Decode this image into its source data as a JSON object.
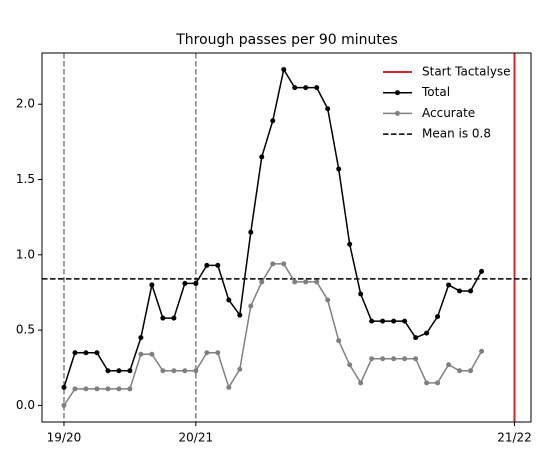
{
  "chart_data": {
    "type": "line",
    "title": "Through passes per 90 minutes",
    "x": [
      0,
      1,
      2,
      3,
      4,
      5,
      6,
      7,
      8,
      9,
      10,
      11,
      12,
      13,
      14,
      15,
      16,
      17,
      18,
      19,
      20,
      21,
      22,
      23,
      24,
      25,
      26,
      27,
      28,
      29,
      30,
      31,
      32,
      33,
      34,
      35,
      36,
      37,
      38
    ],
    "series": [
      {
        "name": "Total",
        "color": "#000000",
        "values": [
          0.12,
          0.35,
          0.35,
          0.35,
          0.23,
          0.23,
          0.23,
          0.45,
          0.8,
          0.58,
          0.58,
          0.81,
          0.81,
          0.93,
          0.93,
          0.7,
          0.6,
          1.15,
          1.65,
          1.89,
          2.23,
          2.11,
          2.11,
          2.11,
          1.97,
          1.57,
          1.07,
          0.74,
          0.56,
          0.56,
          0.56,
          0.56,
          0.45,
          0.48,
          0.59,
          0.8,
          0.76,
          0.76,
          0.89
        ]
      },
      {
        "name": "Accurate",
        "color": "#808080",
        "values": [
          0.0,
          0.11,
          0.11,
          0.11,
          0.11,
          0.11,
          0.11,
          0.34,
          0.34,
          0.23,
          0.23,
          0.23,
          0.23,
          0.35,
          0.35,
          0.12,
          0.24,
          0.66,
          0.82,
          0.94,
          0.94,
          0.82,
          0.82,
          0.82,
          0.7,
          0.43,
          0.27,
          0.15,
          0.31,
          0.31,
          0.31,
          0.31,
          0.31,
          0.15,
          0.15,
          0.27,
          0.23,
          0.23,
          0.36
        ]
      }
    ],
    "season_lines": {
      "color": "#808080",
      "x": [
        0,
        12
      ]
    },
    "start_line": {
      "name": "Start Tactalyse",
      "color": "#d62728",
      "x": 41
    },
    "mean_line": {
      "name": "Mean is 0.8",
      "color": "#000000",
      "value": 0.84
    },
    "xlim": [
      -2,
      42.5
    ],
    "ylim": [
      -0.11,
      2.34
    ],
    "xticks": [
      {
        "value": 0,
        "label": "19/20"
      },
      {
        "value": 12,
        "label": "20/21"
      },
      {
        "value": 41,
        "label": "21/22"
      }
    ],
    "yticks": [
      {
        "value": 0,
        "label": "0.0"
      },
      {
        "value": 0.5,
        "label": "0.5"
      },
      {
        "value": 1,
        "label": "1.0"
      },
      {
        "value": 1.5,
        "label": "1.5"
      },
      {
        "value": 2,
        "label": "2.0"
      }
    ],
    "grid": false,
    "legend": "upper right"
  }
}
